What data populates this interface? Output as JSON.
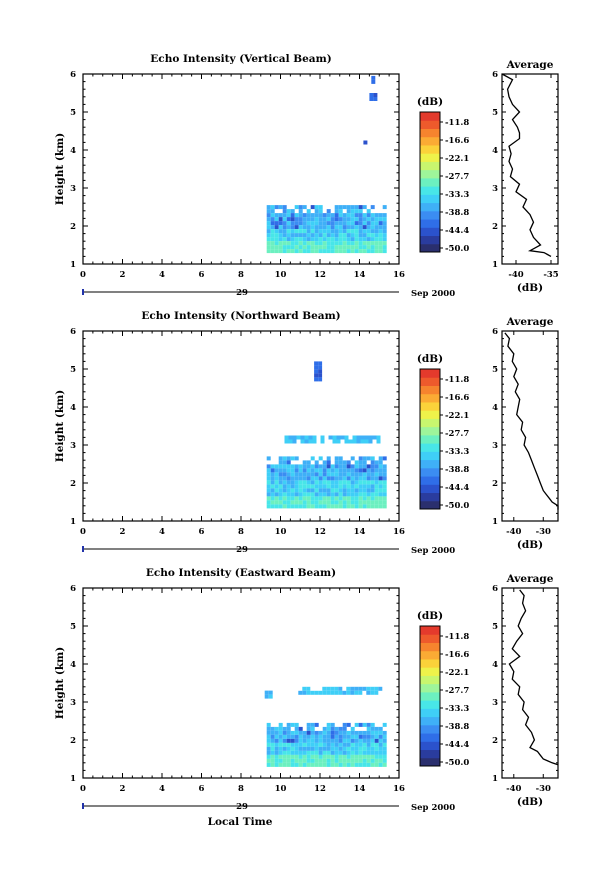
{
  "figure": {
    "x_axis_label": "Local Time",
    "date_prefix": "29",
    "date_suffix": "Sep 2000",
    "x_ticks": [
      "0",
      "2",
      "4",
      "6",
      "8",
      "10",
      "12",
      "14",
      "16"
    ],
    "y_ticks": [
      "1",
      "2",
      "3",
      "4",
      "5",
      "6"
    ],
    "y_label": "Height (km)",
    "colorbar_unit": "(dB)",
    "colorbar_ticks": [
      "-11.8",
      "-16.6",
      "-22.1",
      "-27.7",
      "-33.3",
      "-38.8",
      "-44.4",
      "-50.0"
    ],
    "colorbar_colors": [
      "#2a2f6e",
      "#2a3c9e",
      "#2b52cc",
      "#2f6ee8",
      "#3b8df2",
      "#3fb0f7",
      "#3fcff7",
      "#48e6e8",
      "#6cf0c0",
      "#9ef59a",
      "#c8f66e",
      "#eef24a",
      "#fbd23a",
      "#fbab34",
      "#f6842e",
      "#ee5a2c",
      "#e43a2c"
    ],
    "average_title": "Average",
    "average_xlabel": "(dB)"
  },
  "chart_data": [
    {
      "type": "heatmap",
      "title": "Echo Intensity (Vertical Beam)",
      "xlabel": "",
      "ylabel": "Height (km)",
      "xlim": [
        0,
        16
      ],
      "ylim": [
        1,
        6
      ],
      "colorbar": {
        "label": "(dB)",
        "range": [
          -50.0,
          -6.5
        ]
      },
      "echo_regions": [
        {
          "time": [
            9.3,
            15.2
          ],
          "height": [
            1.35,
            2.55
          ],
          "intensity_db_range": [
            -44,
            -30
          ],
          "note": "boundary-layer echo"
        },
        {
          "time": [
            14.5,
            14.9
          ],
          "height": [
            5.35,
            5.5
          ],
          "intensity_db": -43
        },
        {
          "time": [
            14.6,
            14.7
          ],
          "height": [
            5.75,
            5.95
          ],
          "intensity_db": -43
        },
        {
          "time": [
            14.2,
            14.35
          ],
          "height": [
            4.15,
            4.25
          ],
          "intensity_db": -43
        }
      ]
    },
    {
      "type": "line",
      "title": "Average",
      "xlabel": "(dB)",
      "ylabel": "",
      "xlim": [
        -42,
        -34
      ],
      "x_ticks": [
        "-40",
        "-35"
      ],
      "ylim": [
        1,
        6
      ],
      "x": [
        -42,
        -40.5,
        -41.2,
        -41,
        -40.5,
        -39.5,
        -40.5,
        -39.8,
        -39.5,
        -39.5,
        -41,
        -40.7,
        -41,
        -40.5,
        -40.8,
        -39.5,
        -40,
        -38.5,
        -39,
        -38,
        -37.5,
        -38,
        -37.5,
        -36.5,
        -38,
        -36,
        -35.5,
        -35
      ],
      "y": [
        6,
        5.85,
        5.6,
        5.4,
        5.2,
        5.0,
        4.8,
        4.6,
        4.45,
        4.3,
        4.1,
        3.9,
        3.7,
        3.5,
        3.3,
        3.1,
        2.9,
        2.7,
        2.5,
        2.3,
        2.1,
        1.9,
        1.7,
        1.5,
        1.35,
        1.3,
        1.25,
        1.2
      ]
    },
    {
      "type": "heatmap",
      "title": "Echo Intensity (Northward Beam)",
      "xlabel": "",
      "ylabel": "Height (km)",
      "xlim": [
        0,
        16
      ],
      "ylim": [
        1,
        6
      ],
      "colorbar": {
        "label": "(dB)",
        "range": [
          -50.0,
          -6.5
        ]
      },
      "echo_regions": [
        {
          "time": [
            9.3,
            15.2
          ],
          "height": [
            1.35,
            2.7
          ],
          "intensity_db_range": [
            -44,
            -28
          ],
          "note": "boundary-layer echo"
        },
        {
          "time": [
            10.0,
            15.0
          ],
          "height": [
            3.1,
            3.25
          ],
          "intensity_db": -36,
          "note": "scattered patches"
        },
        {
          "time": [
            11.7,
            12.1
          ],
          "height": [
            4.75,
            5.2
          ],
          "intensity_db": -43
        }
      ]
    },
    {
      "type": "line",
      "title": "Average",
      "xlabel": "(dB)",
      "ylabel": "",
      "xlim": [
        -44,
        -25
      ],
      "x_ticks": [
        "-40",
        "-30"
      ],
      "ylim": [
        1,
        6
      ],
      "x": [
        -43,
        -41.5,
        -42,
        -40,
        -40.5,
        -39,
        -40,
        -38.5,
        -39.5,
        -38,
        -38.5,
        -39,
        -37,
        -37.5,
        -36,
        -36.5,
        -35,
        -34,
        -33,
        -32,
        -31,
        -30,
        -29,
        -28,
        -27,
        -26,
        -25,
        -25
      ],
      "y": [
        5.95,
        5.8,
        5.6,
        5.4,
        5.2,
        5.0,
        4.8,
        4.6,
        4.4,
        4.2,
        4.0,
        3.8,
        3.6,
        3.4,
        3.2,
        3.0,
        2.8,
        2.6,
        2.4,
        2.2,
        2.0,
        1.8,
        1.7,
        1.6,
        1.5,
        1.45,
        1.4,
        1.3
      ]
    },
    {
      "type": "heatmap",
      "title": "Echo Intensity (Eastward Beam)",
      "xlabel": "Local Time",
      "ylabel": "Height (km)",
      "xlim": [
        0,
        16
      ],
      "ylim": [
        1,
        6
      ],
      "colorbar": {
        "label": "(dB)",
        "range": [
          -50.0,
          -6.5
        ]
      },
      "echo_regions": [
        {
          "time": [
            9.3,
            15.2
          ],
          "height": [
            1.35,
            2.45
          ],
          "intensity_db_range": [
            -44,
            -28
          ],
          "note": "boundary-layer echo"
        },
        {
          "time": [
            9.2,
            9.6
          ],
          "height": [
            3.1,
            3.3
          ],
          "intensity_db": -36
        },
        {
          "time": [
            10.9,
            15.0
          ],
          "height": [
            3.25,
            3.4
          ],
          "intensity_db": -36
        }
      ]
    },
    {
      "type": "line",
      "title": "Average",
      "xlabel": "(dB)",
      "ylabel": "",
      "xlim": [
        -44,
        -25
      ],
      "x_ticks": [
        "-40",
        "-30"
      ],
      "ylim": [
        1,
        6
      ],
      "x": [
        -38,
        -36.5,
        -37,
        -36,
        -37.5,
        -38.5,
        -37,
        -39,
        -40.5,
        -38,
        -41.5,
        -40,
        -40.5,
        -38,
        -38.5,
        -36.5,
        -37,
        -35,
        -36,
        -34,
        -33,
        -34.5,
        -32,
        -31,
        -30,
        -28.5,
        -27,
        -25
      ],
      "y": [
        5.95,
        5.8,
        5.6,
        5.4,
        5.2,
        5.0,
        4.8,
        4.6,
        4.4,
        4.2,
        4.0,
        3.8,
        3.6,
        3.4,
        3.2,
        3.0,
        2.8,
        2.6,
        2.4,
        2.2,
        2.0,
        1.8,
        1.7,
        1.6,
        1.5,
        1.45,
        1.4,
        1.35
      ]
    }
  ]
}
